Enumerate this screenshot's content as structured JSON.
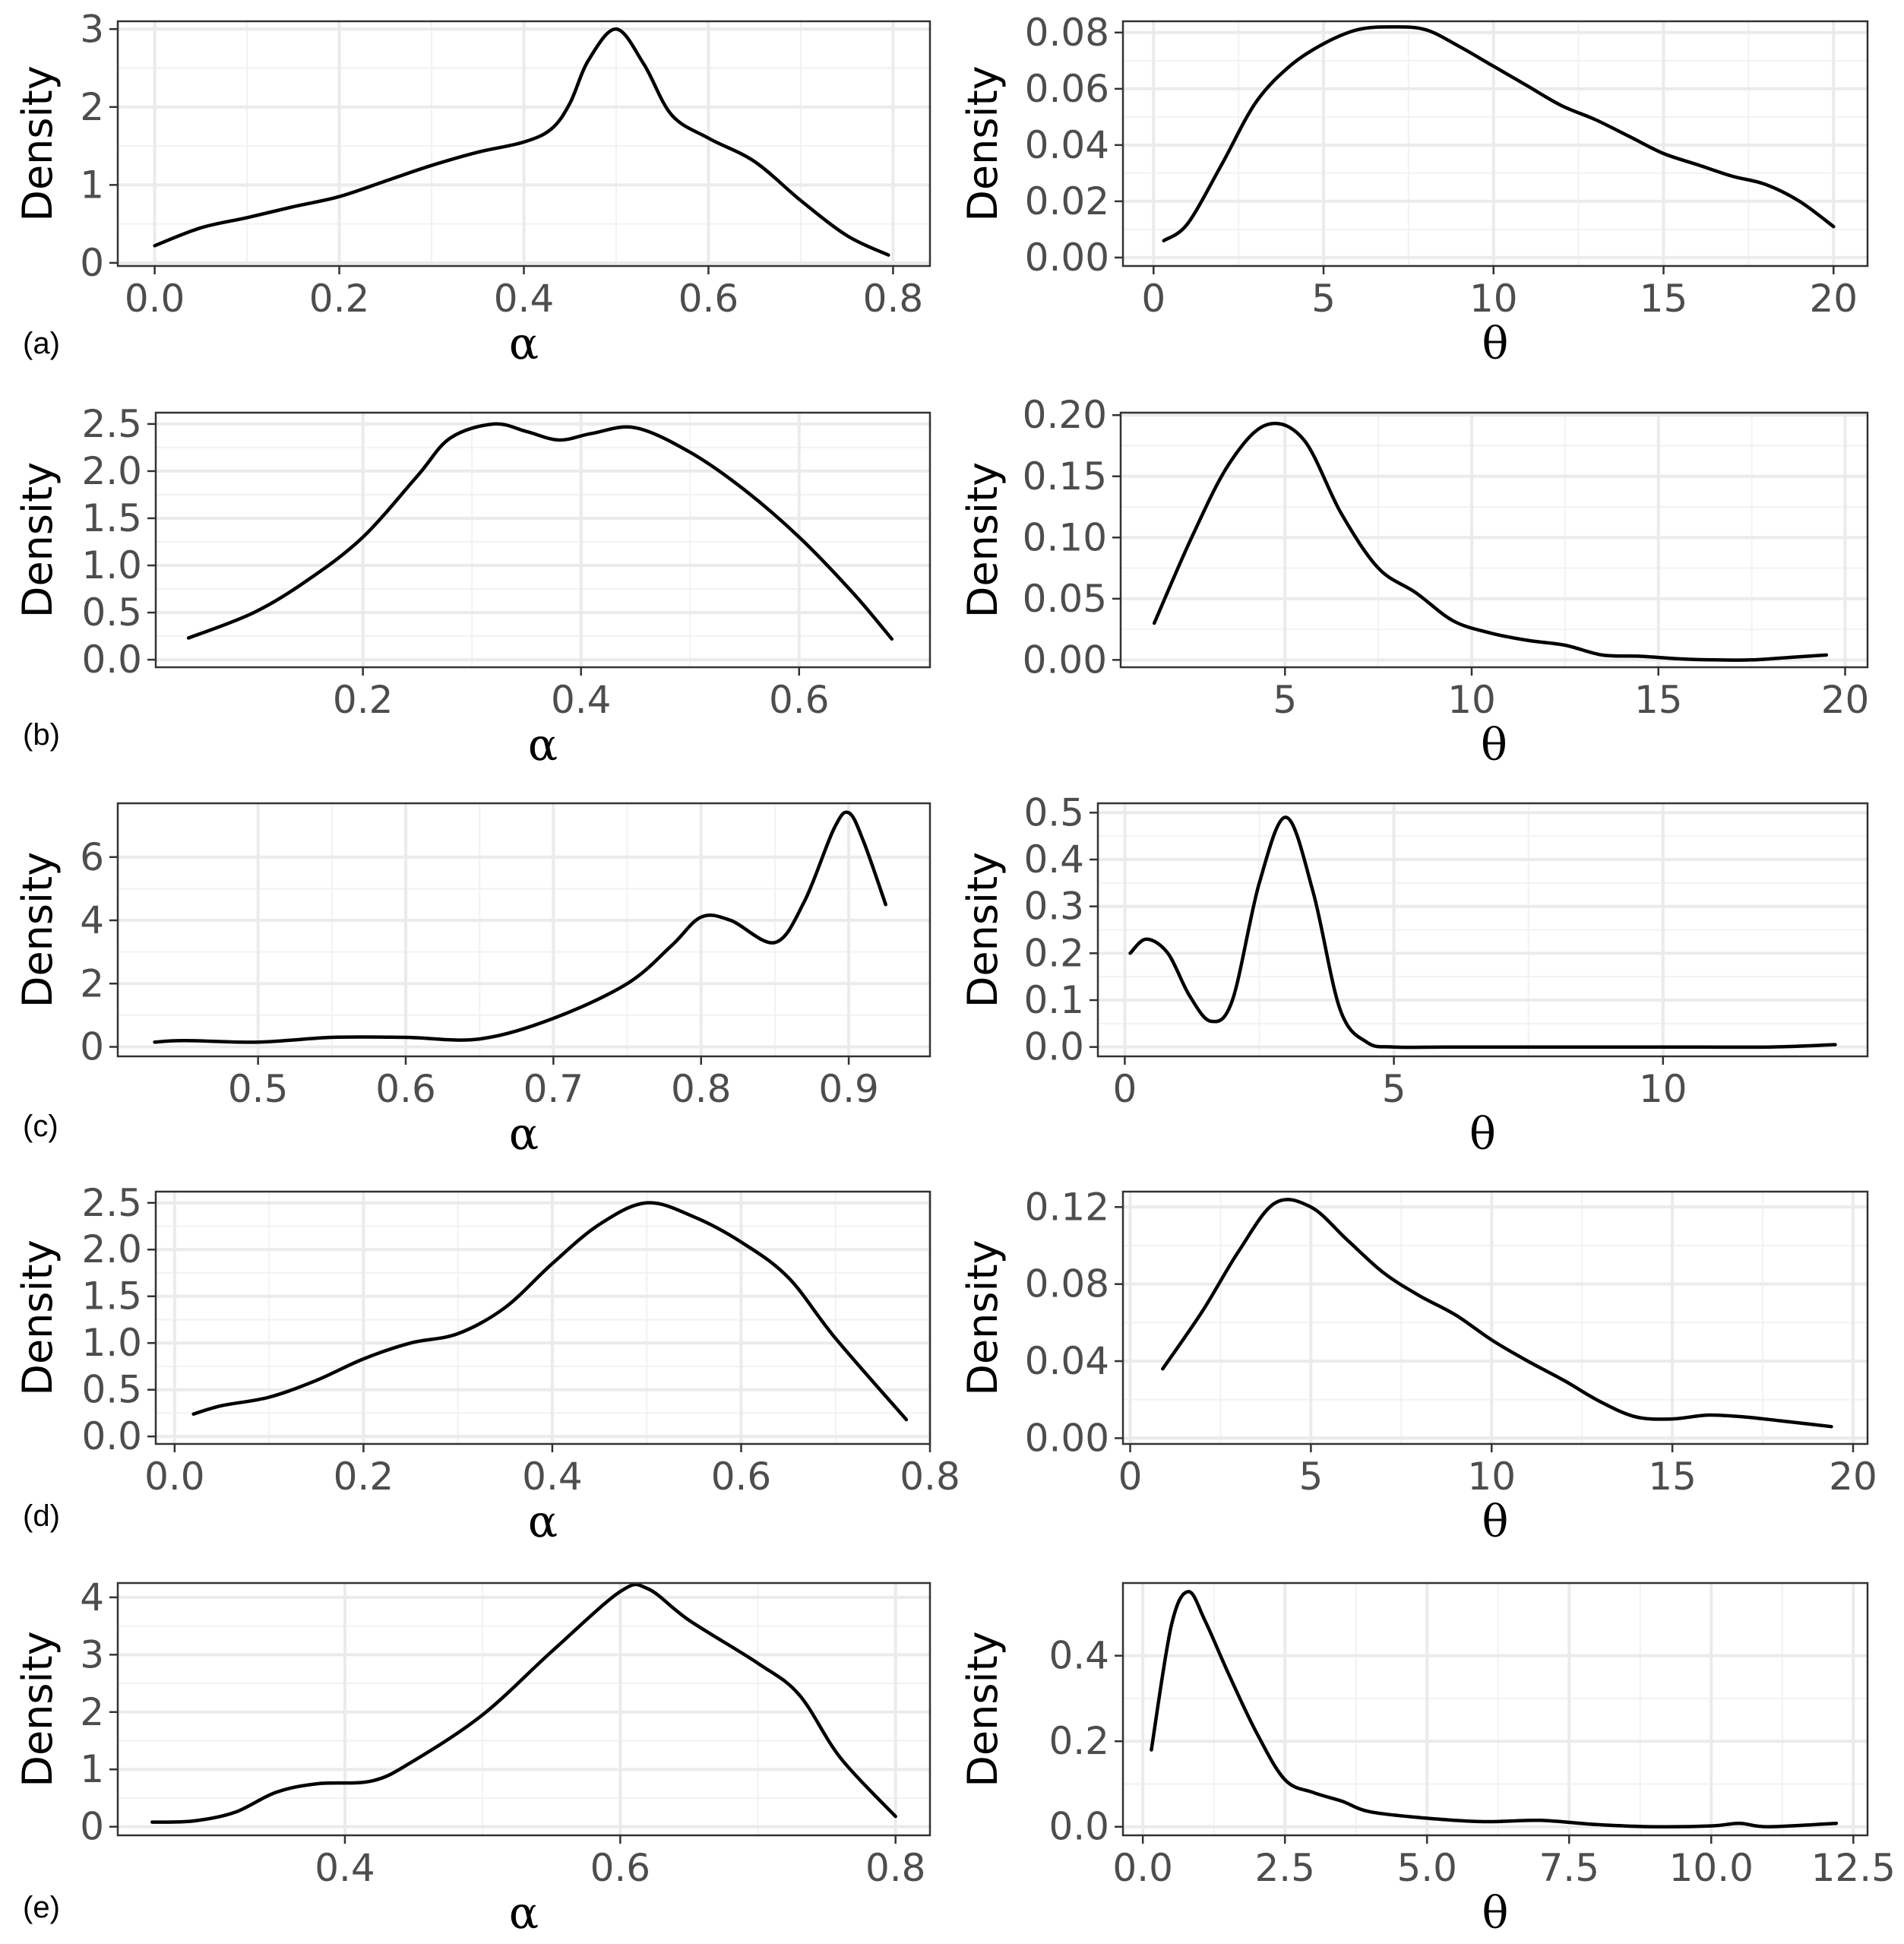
{
  "chart_data": [
    {
      "type": "line",
      "panel": "a",
      "panel_label": "(a)",
      "param": "alpha",
      "xlabel": "α",
      "ylabel": "Density",
      "xlim": [
        -0.04,
        0.84
      ],
      "ylim": [
        -0.04,
        3.1
      ],
      "xticks": [
        0.0,
        0.2,
        0.4,
        0.6,
        0.8
      ],
      "xtick_labels": [
        "0.0",
        "0.2",
        "0.4",
        "0.6",
        "0.8"
      ],
      "yticks": [
        0,
        1,
        2,
        3
      ],
      "ytick_labels": [
        "0",
        "1",
        "2",
        "3"
      ],
      "x": [
        0.0,
        0.05,
        0.1,
        0.15,
        0.2,
        0.25,
        0.3,
        0.35,
        0.4,
        0.43,
        0.45,
        0.47,
        0.5,
        0.53,
        0.56,
        0.6,
        0.65,
        0.7,
        0.75,
        0.795
      ],
      "y": [
        0.22,
        0.45,
        0.58,
        0.72,
        0.85,
        1.05,
        1.25,
        1.42,
        1.55,
        1.72,
        2.05,
        2.6,
        3.0,
        2.55,
        1.9,
        1.6,
        1.3,
        0.8,
        0.35,
        0.1
      ]
    },
    {
      "type": "line",
      "panel": "a",
      "param": "theta",
      "xlabel": "θ",
      "ylabel": "Density",
      "xlim": [
        -0.9,
        21.0
      ],
      "ylim": [
        -0.003,
        0.084
      ],
      "xticks": [
        0,
        5,
        10,
        15,
        20
      ],
      "xtick_labels": [
        "0",
        "5",
        "10",
        "15",
        "20"
      ],
      "yticks": [
        0.0,
        0.02,
        0.04,
        0.06,
        0.08
      ],
      "ytick_labels": [
        "0.00",
        "0.02",
        "0.04",
        "0.06",
        "0.08"
      ],
      "x": [
        0.3,
        1,
        2,
        3,
        4,
        5,
        6,
        7,
        8,
        9,
        10,
        11,
        12,
        13,
        14,
        15,
        16,
        17,
        18,
        19,
        20
      ],
      "y": [
        0.006,
        0.012,
        0.033,
        0.055,
        0.068,
        0.076,
        0.081,
        0.082,
        0.081,
        0.075,
        0.068,
        0.061,
        0.054,
        0.049,
        0.043,
        0.037,
        0.033,
        0.029,
        0.026,
        0.02,
        0.011
      ]
    },
    {
      "type": "line",
      "panel": "b",
      "panel_label": "(b)",
      "param": "alpha",
      "xlabel": "α",
      "ylabel": "Density",
      "xlim": [
        0.01,
        0.72
      ],
      "ylim": [
        -0.08,
        2.62
      ],
      "xticks": [
        0.2,
        0.4,
        0.6
      ],
      "xtick_labels": [
        "0.2",
        "0.4",
        "0.6"
      ],
      "yticks": [
        0.0,
        0.5,
        1.0,
        1.5,
        2.0,
        2.5
      ],
      "ytick_labels": [
        "0.0",
        "0.5",
        "1.0",
        "1.5",
        "2.0",
        "2.5"
      ],
      "x": [
        0.04,
        0.1,
        0.15,
        0.2,
        0.25,
        0.28,
        0.32,
        0.35,
        0.38,
        0.41,
        0.45,
        0.5,
        0.55,
        0.6,
        0.65,
        0.685
      ],
      "y": [
        0.23,
        0.5,
        0.85,
        1.3,
        1.95,
        2.35,
        2.5,
        2.42,
        2.33,
        2.4,
        2.46,
        2.2,
        1.8,
        1.3,
        0.7,
        0.22
      ]
    },
    {
      "type": "line",
      "panel": "b",
      "param": "theta",
      "xlabel": "θ",
      "ylabel": "Density",
      "xlim": [
        0.6,
        20.6
      ],
      "ylim": [
        -0.006,
        0.202
      ],
      "xticks": [
        5,
        10,
        15,
        20
      ],
      "xtick_labels": [
        "5",
        "10",
        "15",
        "20"
      ],
      "yticks": [
        0.0,
        0.05,
        0.1,
        0.15,
        0.2
      ],
      "ytick_labels": [
        "0.00",
        "0.05",
        "0.10",
        "0.15",
        "0.20"
      ],
      "x": [
        1.5,
        2.5,
        3.5,
        4.5,
        5.5,
        6.5,
        7.5,
        8.5,
        9.5,
        10.5,
        11.5,
        12.5,
        13.5,
        14.5,
        15.5,
        16.5,
        17.5,
        18.5,
        19.5
      ],
      "y": [
        0.03,
        0.1,
        0.16,
        0.192,
        0.18,
        0.12,
        0.075,
        0.055,
        0.032,
        0.022,
        0.016,
        0.012,
        0.004,
        0.003,
        0.001,
        0.0,
        0.0,
        0.002,
        0.004
      ]
    },
    {
      "type": "line",
      "panel": "c",
      "panel_label": "(c)",
      "param": "alpha",
      "xlabel": "α",
      "ylabel": "Density",
      "xlim": [
        0.405,
        0.955
      ],
      "ylim": [
        -0.3,
        7.7
      ],
      "xticks": [
        0.5,
        0.6,
        0.7,
        0.8,
        0.9
      ],
      "xtick_labels": [
        "0.5",
        "0.6",
        "0.7",
        "0.8",
        "0.9"
      ],
      "yticks": [
        0,
        2,
        4,
        6
      ],
      "ytick_labels": [
        "0",
        "2",
        "4",
        "6"
      ],
      "x": [
        0.43,
        0.45,
        0.5,
        0.55,
        0.6,
        0.65,
        0.7,
        0.75,
        0.78,
        0.8,
        0.82,
        0.85,
        0.87,
        0.89,
        0.9,
        0.91,
        0.925
      ],
      "y": [
        0.15,
        0.2,
        0.15,
        0.3,
        0.3,
        0.25,
        0.9,
        2.0,
        3.2,
        4.1,
        4.0,
        3.3,
        4.6,
        6.9,
        7.4,
        6.5,
        4.5
      ]
    },
    {
      "type": "line",
      "panel": "c",
      "param": "theta",
      "xlabel": "θ",
      "ylabel": "Density",
      "xlim": [
        -0.5,
        13.8
      ],
      "ylim": [
        -0.02,
        0.52
      ],
      "xticks": [
        0,
        5,
        10
      ],
      "xtick_labels": [
        "0",
        "5",
        "10"
      ],
      "yticks": [
        0.0,
        0.1,
        0.2,
        0.3,
        0.4,
        0.5
      ],
      "ytick_labels": [
        "0.0",
        "0.1",
        "0.2",
        "0.3",
        "0.4",
        "0.5"
      ],
      "x": [
        0.1,
        0.4,
        0.8,
        1.2,
        1.6,
        2.0,
        2.5,
        3.0,
        3.5,
        4.0,
        4.5,
        5.0,
        6.0,
        8.0,
        10.0,
        12.0,
        13.2
      ],
      "y": [
        0.2,
        0.23,
        0.2,
        0.11,
        0.055,
        0.1,
        0.35,
        0.49,
        0.33,
        0.08,
        0.01,
        0.0,
        0.0,
        0.0,
        0.0,
        0.0,
        0.005
      ]
    },
    {
      "type": "line",
      "panel": "d",
      "panel_label": "(d)",
      "param": "alpha",
      "xlabel": "α",
      "ylabel": "Density",
      "xlim": [
        -0.02,
        0.8
      ],
      "ylim": [
        -0.08,
        2.62
      ],
      "xticks": [
        0.0,
        0.2,
        0.4,
        0.6,
        0.8
      ],
      "xtick_labels": [
        "0.0",
        "0.2",
        "0.4",
        "0.6",
        "0.8"
      ],
      "yticks": [
        0.0,
        0.5,
        1.0,
        1.5,
        2.0,
        2.5
      ],
      "ytick_labels": [
        "0.0",
        "0.5",
        "1.0",
        "1.5",
        "2.0",
        "2.5"
      ],
      "x": [
        0.02,
        0.05,
        0.1,
        0.15,
        0.2,
        0.25,
        0.3,
        0.35,
        0.4,
        0.45,
        0.5,
        0.55,
        0.6,
        0.65,
        0.7,
        0.775
      ],
      "y": [
        0.24,
        0.33,
        0.42,
        0.6,
        0.83,
        1.0,
        1.1,
        1.38,
        1.85,
        2.27,
        2.5,
        2.35,
        2.08,
        1.7,
        1.05,
        0.18
      ]
    },
    {
      "type": "line",
      "panel": "d",
      "param": "theta",
      "xlabel": "θ",
      "ylabel": "Density",
      "xlim": [
        -0.2,
        20.4
      ],
      "ylim": [
        -0.003,
        0.128
      ],
      "xticks": [
        0,
        5,
        10,
        15,
        20
      ],
      "xtick_labels": [
        "0",
        "5",
        "10",
        "15",
        "20"
      ],
      "yticks": [
        0.0,
        0.04,
        0.08,
        0.12
      ],
      "ytick_labels": [
        "0.00",
        "0.04",
        "0.08",
        "0.12"
      ],
      "x": [
        0.9,
        2,
        3,
        4,
        5,
        6,
        7,
        8,
        9,
        10,
        11,
        12,
        13,
        14,
        15,
        16,
        17,
        18,
        19.4
      ],
      "y": [
        0.036,
        0.066,
        0.097,
        0.122,
        0.12,
        0.103,
        0.086,
        0.074,
        0.064,
        0.051,
        0.04,
        0.03,
        0.019,
        0.011,
        0.01,
        0.012,
        0.011,
        0.009,
        0.006
      ]
    },
    {
      "type": "line",
      "panel": "e",
      "panel_label": "(e)",
      "param": "alpha",
      "xlabel": "α",
      "ylabel": "Density",
      "xlim": [
        0.235,
        0.825
      ],
      "ylim": [
        -0.15,
        4.25
      ],
      "xticks": [
        0.4,
        0.6,
        0.8
      ],
      "xtick_labels": [
        "0.4",
        "0.6",
        "0.8"
      ],
      "yticks": [
        0,
        1,
        2,
        3,
        4
      ],
      "ytick_labels": [
        "0",
        "1",
        "2",
        "3",
        "4"
      ],
      "x": [
        0.26,
        0.29,
        0.32,
        0.35,
        0.38,
        0.42,
        0.45,
        0.5,
        0.55,
        0.6,
        0.62,
        0.65,
        0.7,
        0.73,
        0.76,
        0.8
      ],
      "y": [
        0.08,
        0.1,
        0.25,
        0.6,
        0.75,
        0.8,
        1.15,
        1.95,
        3.05,
        4.1,
        4.15,
        3.6,
        2.85,
        2.3,
        1.2,
        0.18
      ]
    },
    {
      "type": "line",
      "panel": "e",
      "param": "theta",
      "xlabel": "θ",
      "ylabel": "Density",
      "xlim": [
        -0.35,
        12.75
      ],
      "ylim": [
        -0.02,
        0.57
      ],
      "xticks": [
        0.0,
        2.5,
        5.0,
        7.5,
        10.0,
        12.5
      ],
      "xtick_labels": [
        "0.0",
        "2.5",
        "5.0",
        "7.5",
        "10.0",
        "12.5"
      ],
      "yticks": [
        0.0,
        0.2,
        0.4
      ],
      "ytick_labels": [
        "0.0",
        "0.2",
        "0.4"
      ],
      "x": [
        0.15,
        0.5,
        0.8,
        1.1,
        1.5,
        2.0,
        2.5,
        3.0,
        3.5,
        4.0,
        5.0,
        6.0,
        7.0,
        8.0,
        9.0,
        10.0,
        10.5,
        11.0,
        12.2
      ],
      "y": [
        0.18,
        0.47,
        0.55,
        0.48,
        0.36,
        0.22,
        0.11,
        0.08,
        0.06,
        0.035,
        0.02,
        0.012,
        0.015,
        0.005,
        0.0,
        0.002,
        0.008,
        0.0,
        0.008
      ]
    }
  ]
}
